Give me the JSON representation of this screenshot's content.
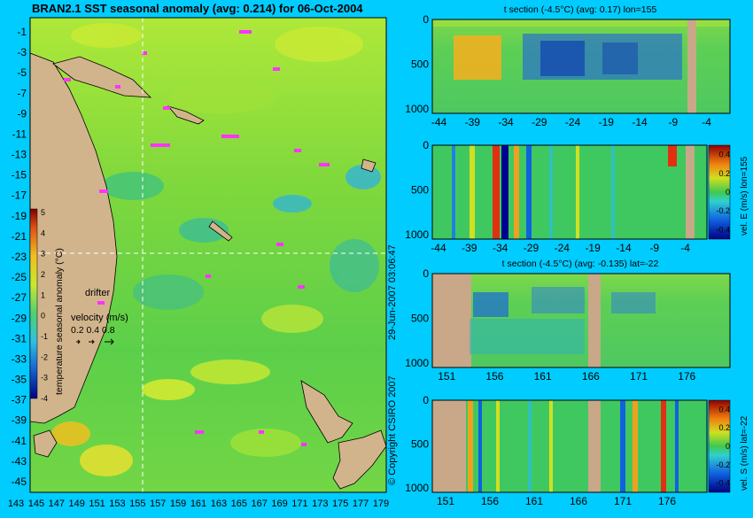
{
  "title": "BRAN2.1 SST seasonal anomaly (avg: 0.214) for 06-Oct-2004",
  "copyright": "© Copyright CSIRO 2007",
  "timestamp": "29-Jun-2007 03:06:47",
  "colors": {
    "background": "#00ccff",
    "land": "#d2b48c",
    "drifter": "#ff33ff",
    "guide_line": "#ffffff"
  },
  "map": {
    "lat_ticks": [
      "-1",
      "-3",
      "-5",
      "-7",
      "-9",
      "-11",
      "-13",
      "-15",
      "-17",
      "-19",
      "-21",
      "-23",
      "-25",
      "-27",
      "-29",
      "-31",
      "-33",
      "-35",
      "-37",
      "-39",
      "-41",
      "-43",
      "-45"
    ],
    "lon_ticks": [
      "143",
      "145",
      "147",
      "149",
      "151",
      "153",
      "155",
      "157",
      "159",
      "161",
      "163",
      "165",
      "167",
      "169",
      "171",
      "173",
      "175",
      "177",
      "179"
    ],
    "colorbar": {
      "label": "temperature seasonal anomaly (°C)",
      "ticks": [
        "5",
        "4",
        "3",
        "2",
        "1",
        "0",
        "-1",
        "-2",
        "-3",
        "-4"
      ],
      "range": [
        -4,
        5
      ]
    },
    "legend": {
      "drifter_label": "drifter",
      "velocity_title": "velocity (m/s)",
      "velocity_values": "0.2 0.4 0.8"
    }
  },
  "chart_data": [
    {
      "type": "heatmap",
      "title": "t section (-4.5°C) (avg: 0.17) lon=155",
      "x_ticks": [
        "-44",
        "-39",
        "-34",
        "-29",
        "-24",
        "-19",
        "-14",
        "-9",
        "-4"
      ],
      "xlim": [
        -45,
        -0.5
      ],
      "y_ticks": [
        "0",
        "500",
        "1000"
      ],
      "ylim": [
        1050,
        0
      ],
      "colorbar": null
    },
    {
      "type": "heatmap",
      "title": "",
      "x_ticks": [
        "-44",
        "-39",
        "-34",
        "-29",
        "-24",
        "-19",
        "-14",
        "-9",
        "-4"
      ],
      "xlim": [
        -45,
        -0.5
      ],
      "y_ticks": [
        "0",
        "500",
        "1000"
      ],
      "ylim": [
        1050,
        0
      ],
      "colorbar": {
        "label": "vel. E (m/s) lon=155",
        "ticks": [
          "0.4",
          "0.2",
          "0",
          "-0.2",
          "-0.4"
        ],
        "range": [
          -0.5,
          0.5
        ]
      }
    },
    {
      "type": "heatmap",
      "title": "t section (-4.5°C) (avg: -0.135) lat=-22",
      "x_ticks": [
        "151",
        "156",
        "161",
        "166",
        "171",
        "176"
      ],
      "xlim": [
        149.5,
        180.5
      ],
      "y_ticks": [
        "0",
        "500",
        "1000"
      ],
      "ylim": [
        1050,
        0
      ],
      "colorbar": null
    },
    {
      "type": "heatmap",
      "title": "",
      "x_ticks": [
        "151",
        "156",
        "161",
        "166",
        "171",
        "176"
      ],
      "xlim": [
        149.5,
        180.5
      ],
      "y_ticks": [
        "0",
        "500",
        "1000"
      ],
      "ylim": [
        1050,
        0
      ],
      "colorbar": {
        "label": "vel. S (m/s) lat=-22",
        "ticks": [
          "0.4",
          "0.2",
          "0",
          "-0.2",
          "-0.4"
        ],
        "range": [
          -0.5,
          0.5
        ]
      }
    }
  ]
}
